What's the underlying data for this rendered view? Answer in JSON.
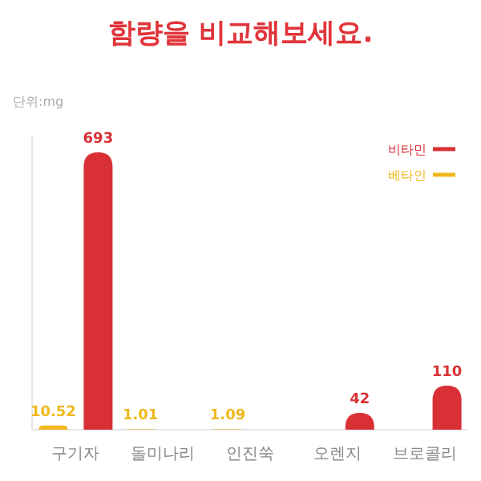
{
  "chart_data": {
    "type": "bar",
    "title": "함량을 비교해보세요.",
    "ylabel": "단위:mg",
    "categories": [
      "구기자",
      "돌미나리",
      "인진쑥",
      "오렌지",
      "브로콜리"
    ],
    "series": [
      {
        "name": "베타인",
        "color": "#f0b81c",
        "values": [
          10.52,
          1.01,
          1.09,
          null,
          null
        ]
      },
      {
        "name": "비타민",
        "color": "#d93036",
        "values": [
          693,
          null,
          null,
          42,
          110
        ]
      }
    ],
    "data_labels": true,
    "legend": "top right"
  }
}
